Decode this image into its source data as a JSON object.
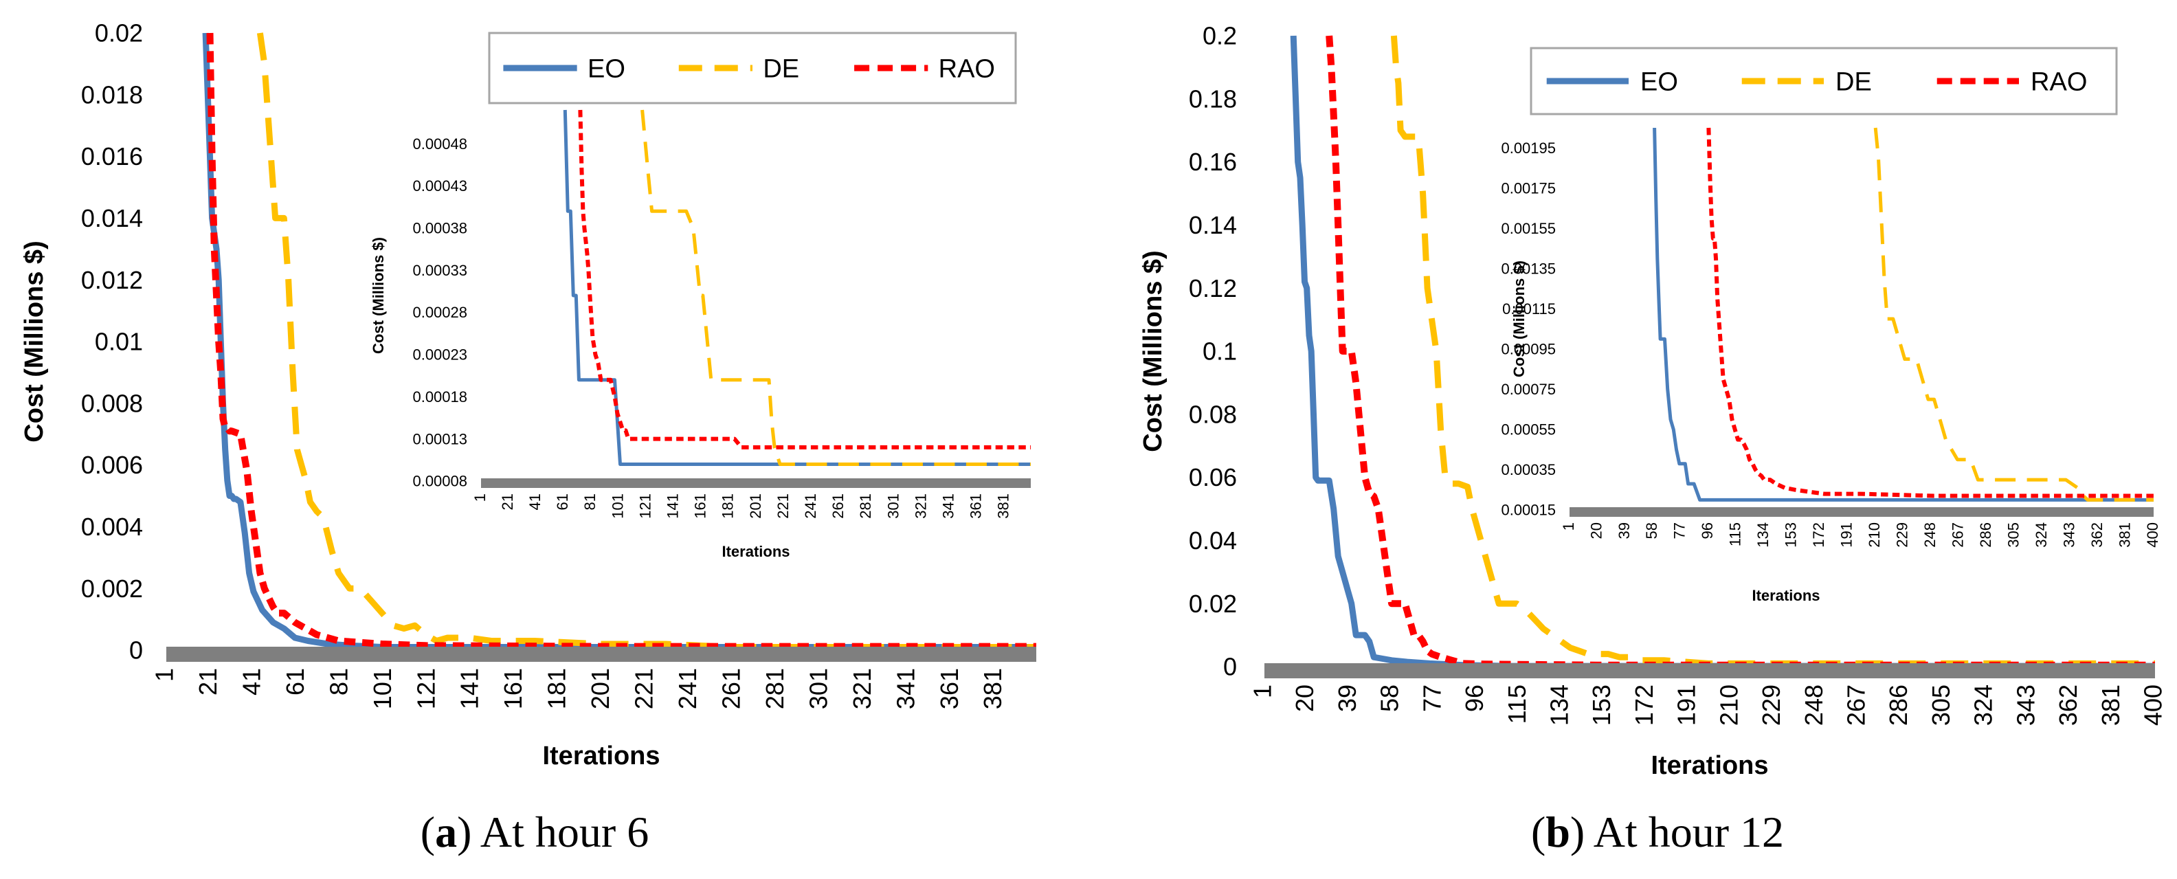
{
  "colors": {
    "EO": "#4a7ebb",
    "DE": "#ffc000",
    "RAO": "#ff0000",
    "axis": "#7f7f7f",
    "legend_border": "#a6a6a6"
  },
  "captions": [
    {
      "letter": "a",
      "text": ") At hour 6",
      "open": "("
    },
    {
      "letter": "b",
      "text": ") At hour 12",
      "open": "("
    }
  ],
  "chart_data": [
    {
      "id": "hour6-main",
      "type": "line",
      "title": "",
      "xlabel": "Iterations",
      "ylabel": "Cost  (Millions $)",
      "xlim": [
        1,
        400
      ],
      "ylim": [
        0,
        0.02
      ],
      "yticks": [
        0,
        0.002,
        0.004,
        0.006,
        0.008,
        0.01,
        0.012,
        0.014,
        0.016,
        0.018,
        0.02
      ],
      "ytick_labels": [
        "0",
        "0.002",
        "0.004",
        "0.006",
        "0.008",
        "0.01",
        "0.012",
        "0.014",
        "0.016",
        "0.018",
        "0.02"
      ],
      "xticks": [
        1,
        21,
        41,
        61,
        81,
        101,
        121,
        141,
        161,
        181,
        201,
        221,
        241,
        261,
        281,
        301,
        321,
        341,
        361,
        381
      ],
      "legend": [
        "EO",
        "DE",
        "RAO"
      ],
      "legend_position": "top-right",
      "series": [
        {
          "name": "EO",
          "x": [
            19,
            20,
            21,
            22,
            24,
            25,
            26,
            27,
            28,
            29,
            30,
            31,
            32,
            33,
            35,
            37,
            39,
            41,
            45,
            50,
            55,
            60,
            66,
            75,
            85,
            100,
            200,
            400
          ],
          "y": [
            0.02,
            0.018,
            0.016,
            0.014,
            0.013,
            0.012,
            0.01,
            0.008,
            0.0065,
            0.0055,
            0.005,
            0.005,
            0.0049,
            0.0049,
            0.0048,
            0.0038,
            0.0025,
            0.0019,
            0.0013,
            0.0009,
            0.0007,
            0.0004,
            0.0003,
            0.0002,
            0.00015,
            0.0001,
            0.0001,
            0.0001
          ]
        },
        {
          "name": "DE",
          "x": [
            44,
            46,
            48,
            50,
            51,
            52,
            53,
            55,
            57,
            59,
            61,
            63,
            65,
            67,
            70,
            73,
            77,
            80,
            85,
            90,
            95,
            100,
            105,
            110,
            115,
            120,
            125,
            130,
            140,
            150,
            170,
            200,
            230,
            260,
            300,
            400
          ],
          "y": [
            0.02,
            0.019,
            0.017,
            0.015,
            0.014,
            0.014,
            0.014,
            0.014,
            0.012,
            0.009,
            0.0065,
            0.006,
            0.0055,
            0.0048,
            0.0045,
            0.0043,
            0.0032,
            0.0025,
            0.002,
            0.002,
            0.0016,
            0.0012,
            0.0008,
            0.0007,
            0.0008,
            0.0005,
            0.0003,
            0.0004,
            0.0004,
            0.0003,
            0.0003,
            0.0002,
            0.0002,
            0.0001,
            0.0001,
            0.0001
          ]
        },
        {
          "name": "RAO",
          "x": [
            21,
            22,
            23,
            24,
            25,
            26,
            27,
            28,
            29,
            30,
            31,
            35,
            38,
            40,
            42,
            44,
            46,
            48,
            50,
            52,
            55,
            60,
            65,
            70,
            80,
            100,
            120,
            200,
            400
          ],
          "y": [
            0.02,
            0.016,
            0.013,
            0.0115,
            0.01,
            0.009,
            0.0075,
            0.0072,
            0.0072,
            0.0071,
            0.0071,
            0.007,
            0.0058,
            0.0045,
            0.0035,
            0.0025,
            0.002,
            0.0017,
            0.0014,
            0.0012,
            0.0012,
            0.0009,
            0.0007,
            0.0005,
            0.0003,
            0.0002,
            0.00015,
            0.00012,
            0.00012
          ]
        }
      ]
    },
    {
      "id": "hour6-inset",
      "type": "line",
      "title": "",
      "xlabel": "Iterations",
      "ylabel": "Cost  (Millions $)",
      "xlim": [
        1,
        400
      ],
      "ylim": [
        8e-05,
        0.00052
      ],
      "yticks": [
        8e-05,
        0.00013,
        0.00018,
        0.00023,
        0.00028,
        0.00033,
        0.00038,
        0.00043,
        0.00048
      ],
      "ytick_labels": [
        "0.00008",
        "0.00013",
        "0.00018",
        "0.00023",
        "0.00028",
        "0.00033",
        "0.00038",
        "0.00043",
        "0.00048"
      ],
      "xticks": [
        1,
        21,
        41,
        61,
        81,
        101,
        121,
        141,
        161,
        181,
        201,
        221,
        241,
        261,
        281,
        301,
        321,
        341,
        361,
        381
      ],
      "series": [
        {
          "name": "EO",
          "x": [
            62,
            64,
            66,
            68,
            70,
            72,
            74,
            76,
            95,
            98,
            100,
            102,
            220,
            400
          ],
          "y": [
            0.00052,
            0.0004,
            0.0004,
            0.0003,
            0.0003,
            0.0002,
            0.0002,
            0.0002,
            0.0002,
            0.0002,
            0.00015,
            0.0001,
            0.0001,
            0.0001
          ]
        },
        {
          "name": "DE",
          "x": [
            118,
            122,
            125,
            150,
            155,
            160,
            162,
            165,
            168,
            172,
            200,
            210,
            212,
            214,
            218,
            222,
            400
          ],
          "y": [
            0.00052,
            0.00045,
            0.0004,
            0.0004,
            0.00038,
            0.0003,
            0.0003,
            0.00025,
            0.0002,
            0.0002,
            0.0002,
            0.0002,
            0.00015,
            0.00012,
            0.0001,
            0.0001,
            0.0001
          ]
        },
        {
          "name": "RAO",
          "x": [
            73,
            74,
            75,
            76,
            78,
            79,
            80,
            82,
            84,
            86,
            88,
            90,
            95,
            98,
            100,
            102,
            104,
            106,
            108,
            110,
            112,
            130,
            160,
            185,
            190,
            200,
            400
          ],
          "y": [
            0.00052,
            0.00045,
            0.0004,
            0.00038,
            0.00035,
            0.00033,
            0.0003,
            0.00025,
            0.00023,
            0.00022,
            0.0002,
            0.0002,
            0.0002,
            0.00018,
            0.00016,
            0.00015,
            0.00014,
            0.00014,
            0.00013,
            0.00013,
            0.00013,
            0.00013,
            0.00013,
            0.00013,
            0.00012,
            0.00012,
            0.00012
          ]
        }
      ]
    },
    {
      "id": "hour12-main",
      "type": "line",
      "title": "",
      "xlabel": "Iterations",
      "ylabel": "Cost  (Millions $)",
      "xlim": [
        1,
        400
      ],
      "ylim": [
        0,
        0.2
      ],
      "yticks": [
        0,
        0.02,
        0.04,
        0.06,
        0.08,
        0.1,
        0.12,
        0.14,
        0.16,
        0.18,
        0.2
      ],
      "ytick_labels": [
        "0",
        "0.02",
        "0.04",
        "0.06",
        "0.08",
        "0.1",
        "0.12",
        "0.14",
        "0.16",
        "0.18",
        "0.2"
      ],
      "xticks": [
        1,
        20,
        39,
        58,
        77,
        96,
        115,
        134,
        153,
        172,
        191,
        210,
        229,
        248,
        267,
        286,
        305,
        324,
        343,
        362,
        381,
        400
      ],
      "legend": [
        "EO",
        "DE",
        "RAO"
      ],
      "legend_position": "top-right",
      "series": [
        {
          "name": "EO",
          "x": [
            14,
            15,
            16,
            17,
            18,
            19,
            20,
            21,
            22,
            23,
            24,
            25,
            27,
            30,
            32,
            34,
            36,
            38,
            40,
            42,
            44,
            46,
            48,
            50,
            54,
            58,
            65,
            75,
            90,
            110,
            400
          ],
          "y": [
            0.2,
            0.18,
            0.16,
            0.155,
            0.14,
            0.122,
            0.12,
            0.105,
            0.1,
            0.08,
            0.06,
            0.059,
            0.059,
            0.059,
            0.05,
            0.035,
            0.03,
            0.025,
            0.02,
            0.01,
            0.01,
            0.01,
            0.008,
            0.003,
            0.0025,
            0.002,
            0.0015,
            0.001,
            0.0005,
            0.0002,
            0.0002
          ]
        },
        {
          "name": "DE",
          "x": [
            59,
            60,
            61,
            62,
            64,
            66,
            70,
            72,
            74,
            76,
            78,
            80,
            82,
            84,
            86,
            88,
            92,
            94,
            96,
            98,
            100,
            102,
            106,
            110,
            114,
            118,
            122,
            126,
            130,
            134,
            138,
            142,
            146,
            150,
            155,
            160,
            165,
            170,
            180,
            200,
            250,
            400
          ],
          "y": [
            0.2,
            0.19,
            0.185,
            0.17,
            0.168,
            0.168,
            0.168,
            0.15,
            0.12,
            0.11,
            0.1,
            0.075,
            0.06,
            0.058,
            0.058,
            0.058,
            0.057,
            0.05,
            0.045,
            0.04,
            0.035,
            0.03,
            0.02,
            0.02,
            0.02,
            0.018,
            0.015,
            0.012,
            0.01,
            0.008,
            0.006,
            0.005,
            0.004,
            0.004,
            0.004,
            0.003,
            0.003,
            0.002,
            0.002,
            0.001,
            0.001,
            0.001
          ]
        },
        {
          "name": "RAO",
          "x": [
            30,
            31,
            32,
            33,
            34,
            35,
            36,
            38,
            40,
            42,
            44,
            46,
            48,
            50,
            52,
            54,
            56,
            58,
            60,
            62,
            64,
            66,
            68,
            70,
            72,
            74,
            76,
            80,
            85,
            90,
            100,
            150,
            200,
            400
          ],
          "y": [
            0.2,
            0.19,
            0.175,
            0.16,
            0.14,
            0.12,
            0.1,
            0.1,
            0.1,
            0.09,
            0.075,
            0.06,
            0.055,
            0.054,
            0.05,
            0.04,
            0.03,
            0.02,
            0.02,
            0.02,
            0.02,
            0.015,
            0.01,
            0.01,
            0.008,
            0.005,
            0.004,
            0.003,
            0.002,
            0.001,
            0.0008,
            0.0005,
            0.0005,
            0.0005
          ]
        }
      ]
    },
    {
      "id": "hour12-inset",
      "type": "line",
      "title": "",
      "xlabel": "Iterations",
      "ylabel": "Cost  (Millions $)",
      "xlim": [
        1,
        400
      ],
      "ylim": [
        0.00015,
        0.00205
      ],
      "yticks": [
        0.00015,
        0.00035,
        0.00055,
        0.00075,
        0.00095,
        0.00115,
        0.00135,
        0.00155,
        0.00175,
        0.00195
      ],
      "ytick_labels": [
        "0.00015",
        "0.00035",
        "0.00055",
        "0.00075",
        "0.00095",
        "0.00115",
        "0.00135",
        "0.00155",
        "0.00175",
        "0.00195"
      ],
      "xticks": [
        1,
        20,
        39,
        58,
        77,
        96,
        115,
        134,
        153,
        172,
        191,
        210,
        229,
        248,
        267,
        286,
        305,
        324,
        343,
        362,
        381,
        400
      ],
      "series": [
        {
          "name": "EO",
          "x": [
            59,
            60,
            61,
            62,
            63,
            64,
            66,
            68,
            70,
            72,
            74,
            76,
            78,
            80,
            82,
            84,
            86,
            90,
            95,
            400
          ],
          "y": [
            0.00205,
            0.0017,
            0.0014,
            0.0012,
            0.001,
            0.001,
            0.001,
            0.00075,
            0.0006,
            0.00055,
            0.00045,
            0.00038,
            0.00038,
            0.00038,
            0.00028,
            0.00028,
            0.00028,
            0.0002,
            0.0002,
            0.0002
          ]
        },
        {
          "name": "DE",
          "x": [
            210,
            212,
            214,
            216,
            218,
            220,
            222,
            226,
            230,
            234,
            238,
            242,
            246,
            250,
            254,
            258,
            262,
            266,
            270,
            275,
            280,
            285,
            290,
            300,
            320,
            340,
            350,
            352,
            355,
            400
          ],
          "y": [
            0.00205,
            0.0019,
            0.0016,
            0.0013,
            0.0011,
            0.0011,
            0.0011,
            0.001,
            0.0009,
            0.0009,
            0.0009,
            0.0008,
            0.0007,
            0.0007,
            0.0006,
            0.0005,
            0.00045,
            0.0004,
            0.0004,
            0.0004,
            0.0003,
            0.0003,
            0.0003,
            0.0003,
            0.0003,
            0.0003,
            0.00025,
            0.00022,
            0.0002,
            0.0002
          ]
        },
        {
          "name": "RAO",
          "x": [
            96,
            97,
            98,
            99,
            100,
            101,
            102,
            104,
            106,
            108,
            110,
            112,
            114,
            116,
            118,
            120,
            122,
            124,
            126,
            128,
            130,
            132,
            134,
            138,
            142,
            148,
            155,
            165,
            175,
            185,
            200,
            250,
            300,
            400
          ],
          "y": [
            0.00205,
            0.0018,
            0.0016,
            0.0015,
            0.0015,
            0.0014,
            0.0012,
            0.001,
            0.0008,
            0.00075,
            0.0007,
            0.0006,
            0.00055,
            0.0005,
            0.0005,
            0.00048,
            0.00045,
            0.0004,
            0.00038,
            0.00035,
            0.00033,
            0.00032,
            0.0003,
            0.0003,
            0.00028,
            0.00026,
            0.00025,
            0.00024,
            0.00023,
            0.00023,
            0.00023,
            0.00022,
            0.00022,
            0.00022
          ]
        }
      ]
    }
  ]
}
